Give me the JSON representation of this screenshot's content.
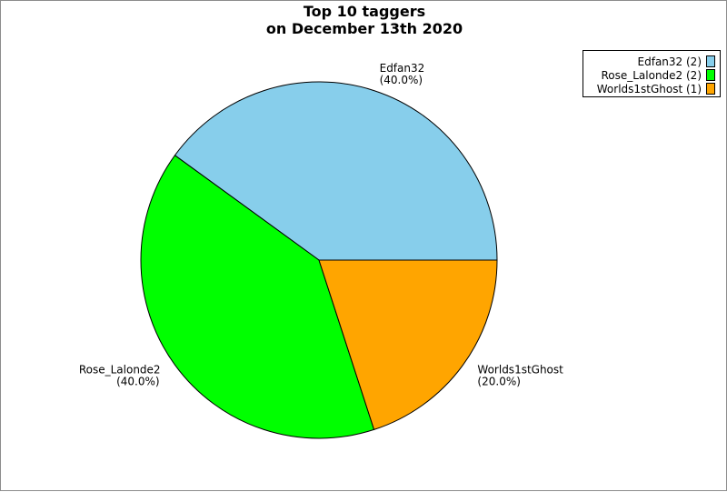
{
  "chart_data": {
    "type": "pie",
    "title_lines": [
      "Top 10 taggers",
      "on December 13th 2020"
    ],
    "slices": [
      {
        "name": "Edfan32",
        "value": 2,
        "percent_label": "(40.0%)",
        "legend_label": "Edfan32 (2)",
        "color": "#87ceeb"
      },
      {
        "name": "Rose_Lalonde2",
        "value": 2,
        "percent_label": "(40.0%)",
        "legend_label": "Rose_Lalonde2 (2)",
        "color": "#00ff00"
      },
      {
        "name": "Worlds1stGhost",
        "value": 1,
        "percent_label": "(20.0%)",
        "legend_label": "Worlds1stGhost (1)",
        "color": "#ffa500"
      }
    ],
    "start_angle_deg": 0,
    "direction": "counterclockwise",
    "legend_placement": "top-right"
  }
}
